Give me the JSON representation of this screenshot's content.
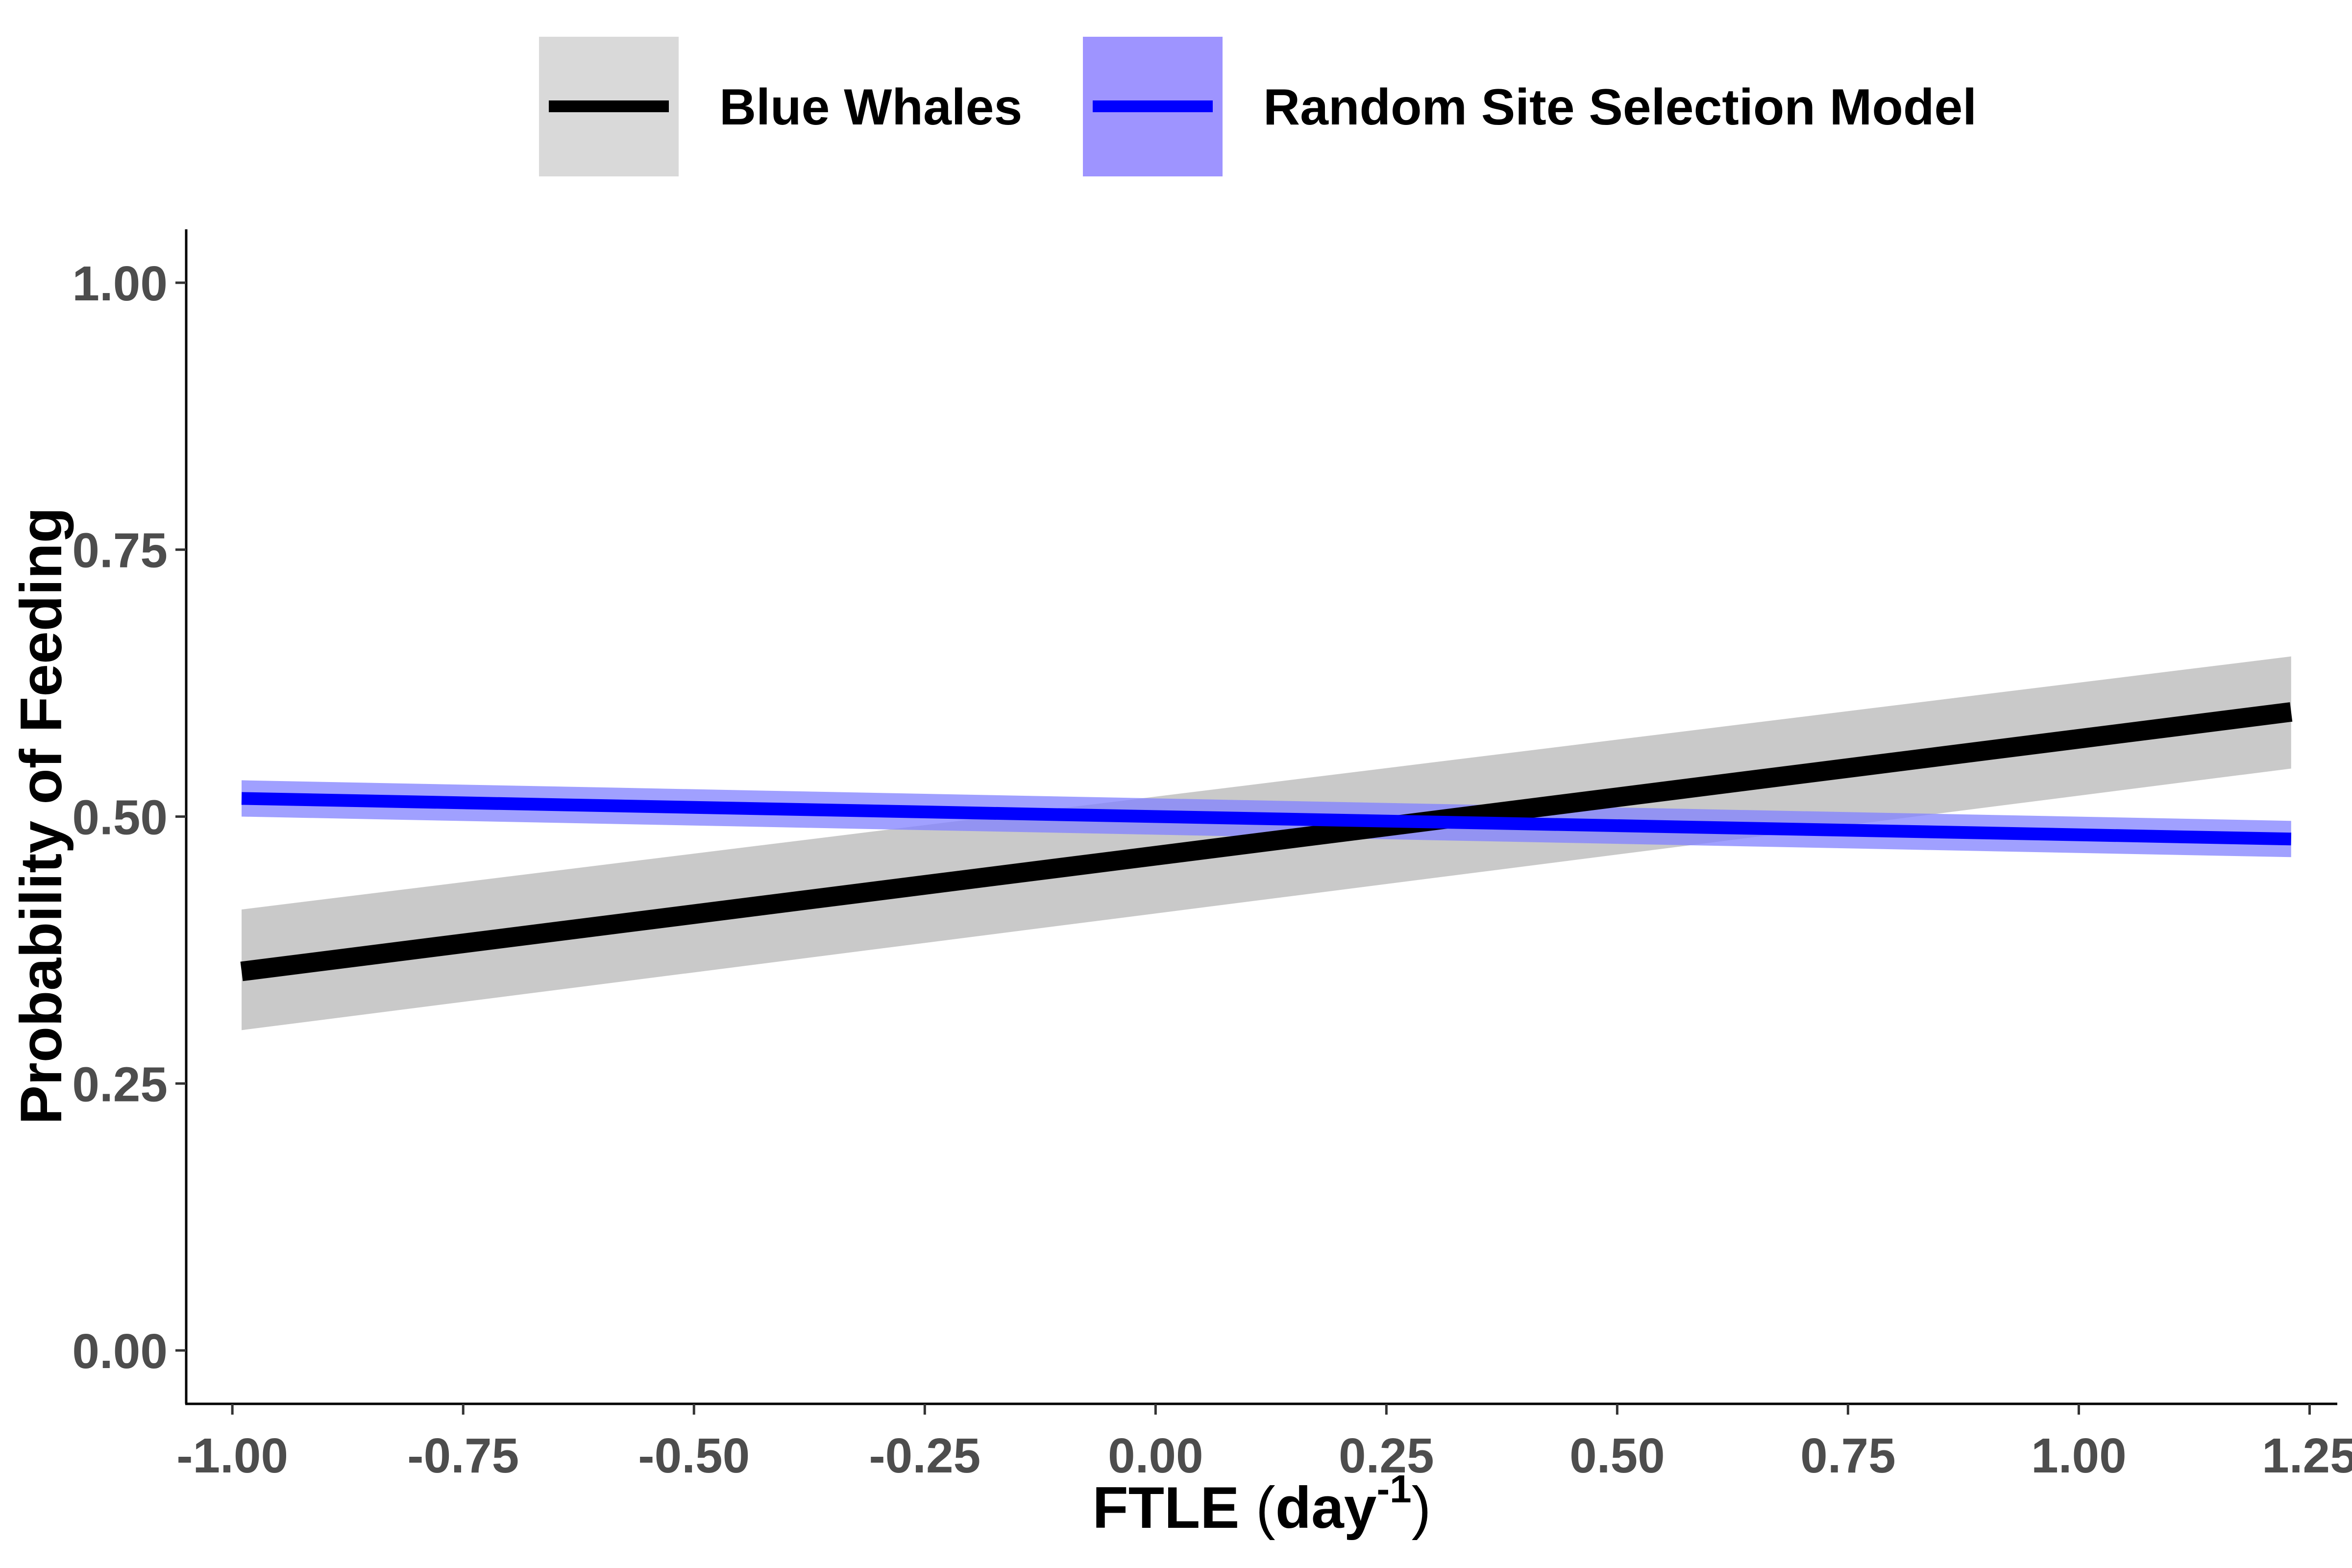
{
  "chart_data": {
    "type": "line",
    "xlabel": "FTLE",
    "xlabel_unit": "day",
    "xlabel_unit_exponent": "-1",
    "xlabel_open_paren": "(",
    "xlabel_close_paren": ")",
    "ylabel": "Probability of Feeding",
    "xlim": [
      -1.05,
      1.28
    ],
    "ylim": [
      -0.05,
      1.05
    ],
    "x_ticks": [
      -1.0,
      -0.75,
      -0.5,
      -0.25,
      0.0,
      0.25,
      0.5,
      0.75,
      1.0,
      1.25
    ],
    "x_tick_labels": [
      "-1.00",
      "-0.75",
      "-0.50",
      "-0.25",
      "0.00",
      "0.25",
      "0.50",
      "0.75",
      "1.00",
      "1.25"
    ],
    "y_ticks": [
      0.0,
      0.25,
      0.5,
      0.75,
      1.0
    ],
    "y_tick_labels": [
      "0.00",
      "0.25",
      "0.50",
      "0.75",
      "1.00"
    ],
    "grid": false,
    "legend_position": "top",
    "series": [
      {
        "name": "Blue Whales",
        "color": "#000000",
        "band_color": "#bfbfbf",
        "band_opacity": 0.85,
        "x": [
          -0.99,
          1.23
        ],
        "y": [
          0.355,
          0.598
        ],
        "lower": [
          0.3,
          0.545
        ],
        "upper": [
          0.413,
          0.65
        ]
      },
      {
        "name": "Random Site Selection Model",
        "color": "#0000ff",
        "band_color": "#8080ff",
        "band_opacity": 0.75,
        "x": [
          -0.99,
          1.23
        ],
        "y": [
          0.517,
          0.479
        ],
        "lower": [
          0.5,
          0.462
        ],
        "upper": [
          0.534,
          0.496
        ]
      }
    ]
  }
}
